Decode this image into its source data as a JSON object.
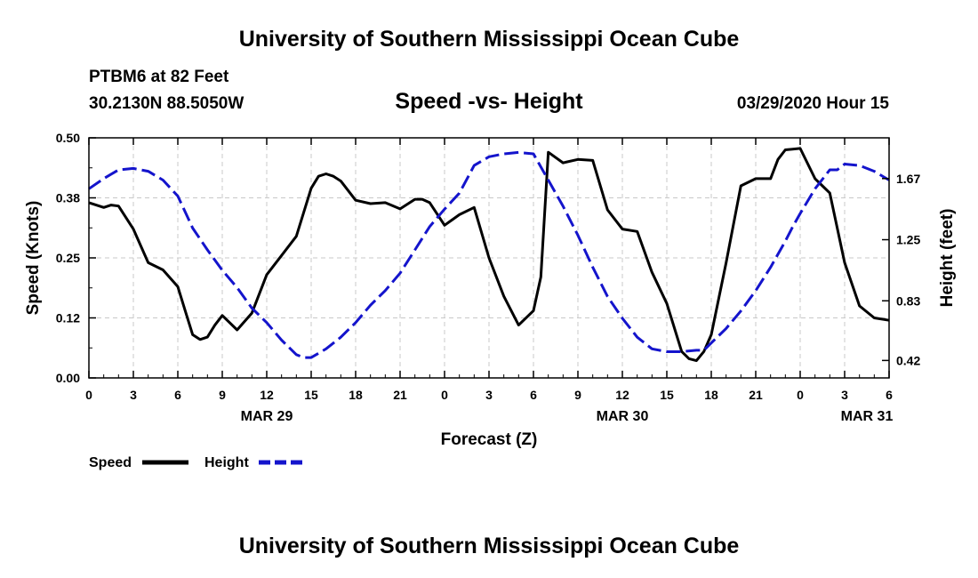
{
  "header": {
    "top_title": "University of Southern Mississippi Ocean Cube",
    "station": "PTBM6 at 82 Feet",
    "coordinates": "30.2130N 88.5050W",
    "datetime": "03/29/2020 Hour 15",
    "bottom_title": "University of Southern Mississippi Ocean Cube"
  },
  "chart_data": {
    "type": "line",
    "title": "Speed -vs- Height",
    "xlabel": "Forecast (Z)",
    "ylabel": "Speed (Knots)",
    "y2label": "Height (feet)",
    "xlim": [
      0,
      54
    ],
    "ylim": [
      0,
      0.5
    ],
    "y2lim": [
      0.3,
      1.95
    ],
    "grid": true,
    "x_ticks": [
      {
        "x": 0,
        "label": "0"
      },
      {
        "x": 3,
        "label": "3"
      },
      {
        "x": 6,
        "label": "6"
      },
      {
        "x": 9,
        "label": "9"
      },
      {
        "x": 12,
        "label": "12"
      },
      {
        "x": 15,
        "label": "15"
      },
      {
        "x": 18,
        "label": "18"
      },
      {
        "x": 21,
        "label": "21"
      },
      {
        "x": 24,
        "label": "0"
      },
      {
        "x": 27,
        "label": "3"
      },
      {
        "x": 30,
        "label": "6"
      },
      {
        "x": 33,
        "label": "9"
      },
      {
        "x": 36,
        "label": "12"
      },
      {
        "x": 39,
        "label": "15"
      },
      {
        "x": 42,
        "label": "18"
      },
      {
        "x": 45,
        "label": "21"
      },
      {
        "x": 48,
        "label": "0"
      },
      {
        "x": 51,
        "label": "3"
      },
      {
        "x": 54,
        "label": "6"
      }
    ],
    "date_labels": [
      {
        "x": 12,
        "label": "MAR 29"
      },
      {
        "x": 36,
        "label": "MAR 30"
      },
      {
        "x": 52.5,
        "label": "MAR 31"
      }
    ],
    "y_ticks": [
      {
        "value": 0.0,
        "label": "0.00"
      },
      {
        "value": 0.125,
        "label": "0.12"
      },
      {
        "value": 0.25,
        "label": "0.25"
      },
      {
        "value": 0.375,
        "label": "0.38"
      },
      {
        "value": 0.5,
        "label": "0.50"
      }
    ],
    "y2_ticks": [
      {
        "value": 0.42,
        "label": "0.42"
      },
      {
        "value": 0.83,
        "label": "0.83"
      },
      {
        "value": 1.25,
        "label": "1.25"
      },
      {
        "value": 1.67,
        "label": "1.67"
      }
    ],
    "series": [
      {
        "name": "Speed",
        "axis": "left",
        "color": "#000000",
        "style": "solid",
        "x": [
          0,
          1,
          1.5,
          2,
          3,
          4,
          5,
          6,
          6.5,
          7,
          7.5,
          8,
          8.5,
          9,
          10,
          11,
          12,
          13,
          14,
          15,
          15.5,
          16,
          16.5,
          17,
          18,
          19,
          20,
          21,
          22,
          22.5,
          23,
          24,
          25,
          26,
          27,
          28,
          29,
          30,
          30.5,
          31,
          32,
          33,
          34,
          35,
          36,
          37,
          38,
          39,
          40,
          40.5,
          41,
          41.5,
          42,
          43,
          44,
          45,
          46,
          46.5,
          47,
          48,
          49,
          49.5,
          50,
          51,
          52,
          53,
          54
        ],
        "y": [
          0.365,
          0.355,
          0.36,
          0.358,
          0.31,
          0.24,
          0.225,
          0.19,
          0.14,
          0.09,
          0.08,
          0.085,
          0.11,
          0.13,
          0.1,
          0.135,
          0.215,
          0.255,
          0.295,
          0.395,
          0.42,
          0.425,
          0.42,
          0.41,
          0.37,
          0.363,
          0.365,
          0.352,
          0.372,
          0.372,
          0.365,
          0.318,
          0.34,
          0.355,
          0.25,
          0.17,
          0.11,
          0.14,
          0.21,
          0.47,
          0.448,
          0.455,
          0.453,
          0.35,
          0.31,
          0.305,
          0.22,
          0.155,
          0.055,
          0.04,
          0.036,
          0.055,
          0.09,
          0.24,
          0.4,
          0.415,
          0.415,
          0.455,
          0.475,
          0.478,
          0.415,
          0.4,
          0.385,
          0.24,
          0.15,
          0.125,
          0.12
        ]
      },
      {
        "name": "Height",
        "axis": "right",
        "color": "#1414cc",
        "style": "dashed",
        "x": [
          0,
          1,
          2,
          3,
          4,
          5,
          6,
          7,
          8,
          9,
          10,
          11,
          12,
          13,
          14,
          14.5,
          15,
          16,
          17,
          18,
          19,
          20,
          21,
          22,
          23,
          24,
          25,
          26,
          27,
          28,
          29,
          30,
          31,
          32,
          33,
          34,
          35,
          36,
          37,
          38,
          39,
          40,
          41,
          41.5,
          42,
          43,
          44,
          45,
          46,
          47,
          47.5,
          48,
          49,
          50,
          50.5,
          51,
          52,
          53,
          54
        ],
        "y": [
          1.6,
          1.67,
          1.73,
          1.74,
          1.72,
          1.66,
          1.55,
          1.33,
          1.18,
          1.04,
          0.92,
          0.78,
          0.68,
          0.56,
          0.46,
          0.44,
          0.44,
          0.5,
          0.58,
          0.68,
          0.8,
          0.9,
          1.02,
          1.18,
          1.34,
          1.46,
          1.57,
          1.76,
          1.82,
          1.84,
          1.85,
          1.84,
          1.66,
          1.48,
          1.28,
          1.06,
          0.86,
          0.71,
          0.58,
          0.5,
          0.48,
          0.48,
          0.49,
          0.49,
          0.54,
          0.64,
          0.76,
          0.9,
          1.06,
          1.24,
          1.34,
          1.43,
          1.6,
          1.73,
          1.73,
          1.77,
          1.76,
          1.72,
          1.66
        ]
      }
    ],
    "legend": [
      {
        "label": "Speed",
        "color": "#000000",
        "style": "solid"
      },
      {
        "label": "Height",
        "color": "#1414cc",
        "style": "dashed"
      }
    ]
  }
}
